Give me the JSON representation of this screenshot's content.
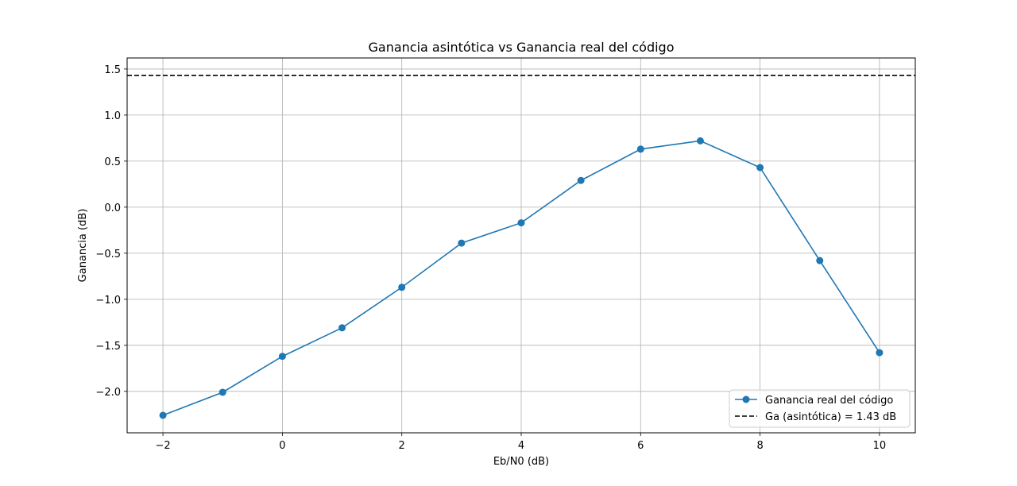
{
  "chart_data": {
    "type": "line",
    "title": "Ganancia asintótica vs Ganancia real del código",
    "xlabel": "Eb/N0 (dB)",
    "ylabel": "Ganancia (dB)",
    "xlim": [
      -2.6,
      10.6
    ],
    "ylim": [
      -2.45,
      1.62
    ],
    "grid": true,
    "xticks": [
      -2,
      0,
      2,
      4,
      6,
      8,
      10
    ],
    "xtick_labels": [
      "−2",
      "0",
      "2",
      "4",
      "6",
      "8",
      "10"
    ],
    "yticks": [
      -2.0,
      -1.5,
      -1.0,
      -0.5,
      0.0,
      0.5,
      1.0,
      1.5
    ],
    "ytick_labels": [
      "−2.0",
      "−1.5",
      "−1.0",
      "−0.5",
      "0.0",
      "0.5",
      "1.0",
      "1.5"
    ],
    "series": [
      {
        "name": "Ganancia real del código",
        "color": "#1f77b4",
        "marker": "circle",
        "x": [
          -2,
          -1,
          0,
          1,
          2,
          3,
          4,
          5,
          6,
          7,
          8,
          9,
          10
        ],
        "values": [
          -2.26,
          -2.01,
          -1.62,
          -1.31,
          -0.87,
          -0.39,
          -0.17,
          0.29,
          0.63,
          0.72,
          0.43,
          -0.58,
          -1.58
        ]
      }
    ],
    "reference_lines": [
      {
        "name": "Ga (asintótica) = 1.43 dB",
        "y": 1.43,
        "color": "#000000",
        "style": "dashed"
      }
    ],
    "legend_position": "lower-right"
  }
}
